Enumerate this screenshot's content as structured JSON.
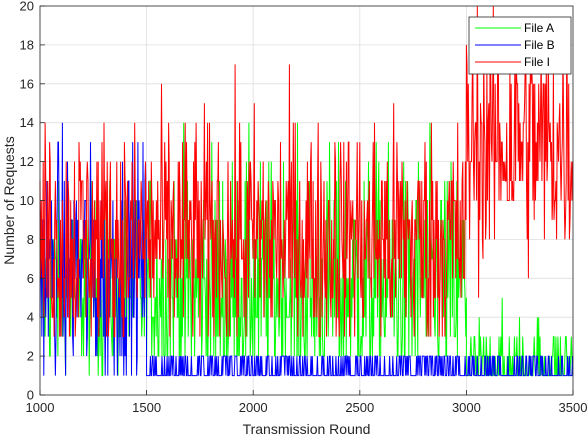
{
  "chart_data": {
    "type": "line",
    "title": "",
    "xlabel": "Transmission Round",
    "ylabel": "Number of Requests",
    "xlim": [
      1000,
      3500
    ],
    "ylim": [
      0,
      20
    ],
    "xticks": [
      1000,
      1500,
      2000,
      2500,
      3000,
      3500
    ],
    "yticks": [
      0,
      2,
      4,
      6,
      8,
      10,
      12,
      14,
      16,
      18,
      20
    ],
    "grid": true,
    "legend_position": "top-right",
    "series": [
      {
        "name": "File A",
        "color": "#00ff00",
        "segments": [
          {
            "from": 1000,
            "to": 1500,
            "mean": 5.5,
            "min": 1,
            "max": 12
          },
          {
            "from": 1500,
            "to": 3000,
            "mean": 5.5,
            "min": 2,
            "max": 17
          },
          {
            "from": 3000,
            "to": 3500,
            "mean": 1.3,
            "min": 1,
            "max": 7
          }
        ]
      },
      {
        "name": "File B",
        "color": "#0000ff",
        "segments": [
          {
            "from": 1000,
            "to": 1500,
            "mean": 6.5,
            "min": 1,
            "max": 15
          },
          {
            "from": 1500,
            "to": 3500,
            "mean": 1.3,
            "min": 1,
            "max": 2
          }
        ]
      },
      {
        "name": "File I",
        "color": "#ff0000",
        "segments": [
          {
            "from": 1000,
            "to": 3000,
            "mean": 8,
            "min": 3,
            "max": 17
          },
          {
            "from": 3000,
            "to": 3500,
            "mean": 13,
            "min": 5,
            "max": 20
          }
        ]
      }
    ]
  }
}
